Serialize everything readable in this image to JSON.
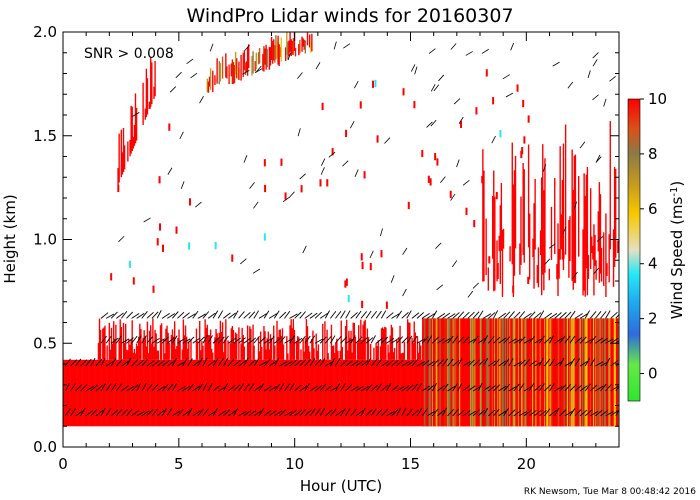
{
  "chart_data": {
    "type": "heatmap",
    "title": "WindPro Lidar winds for 20160307",
    "xlabel": "Hour (UTC)",
    "ylabel": "Height (km)",
    "xlim": [
      0,
      24
    ],
    "ylim": [
      0,
      2.0
    ],
    "xticks": [
      0,
      5,
      10,
      15,
      20
    ],
    "yticks": [
      0.0,
      0.5,
      1.0,
      1.5,
      2.0
    ],
    "ytick_labels": [
      "0.0",
      "0.5",
      "1.0",
      "1.5",
      "2.0"
    ],
    "colorbar": {
      "label": "Wind Speed (ms",
      "label_sup": "-1",
      "label_close": ")",
      "range": [
        -1,
        10
      ],
      "ticks": [
        0,
        2,
        4,
        6,
        8,
        10
      ],
      "colors": [
        "#2ee62e",
        "#2f6bdc",
        "#25e8f5",
        "#f6c800",
        "#8b7a45",
        "#ff0000"
      ]
    },
    "annotation": "SNR > 0.008",
    "footer": "RK Newsom, Tue Mar  8 00:48:42 2016",
    "regions": [
      {
        "name": "low-layer",
        "x": [
          0,
          24
        ],
        "y": [
          0.1,
          0.42
        ],
        "dominant_speed": 10
      },
      {
        "name": "mid-layer",
        "x": [
          1.5,
          24
        ],
        "y": [
          0.42,
          0.62
        ],
        "dominant_speed": 10
      },
      {
        "name": "afternoon-mixed",
        "x": [
          15.5,
          24
        ],
        "y": [
          0.1,
          0.62
        ],
        "dominant_speed": 7
      },
      {
        "name": "rising-plume",
        "x": [
          2.3,
          4.0
        ],
        "y": [
          1.25,
          1.9
        ],
        "dominant_speed": 10
      },
      {
        "name": "upper-band",
        "x": [
          6.2,
          10.8
        ],
        "y": [
          1.7,
          2.0
        ],
        "dominant_speed": 9
      },
      {
        "name": "evening-upper",
        "x": [
          18.0,
          24
        ],
        "y": [
          0.75,
          1.8
        ],
        "dominant_speed": 10
      }
    ],
    "wind_barb_rows_km": [
      0.15,
      0.27,
      0.39,
      0.5,
      0.62
    ]
  }
}
